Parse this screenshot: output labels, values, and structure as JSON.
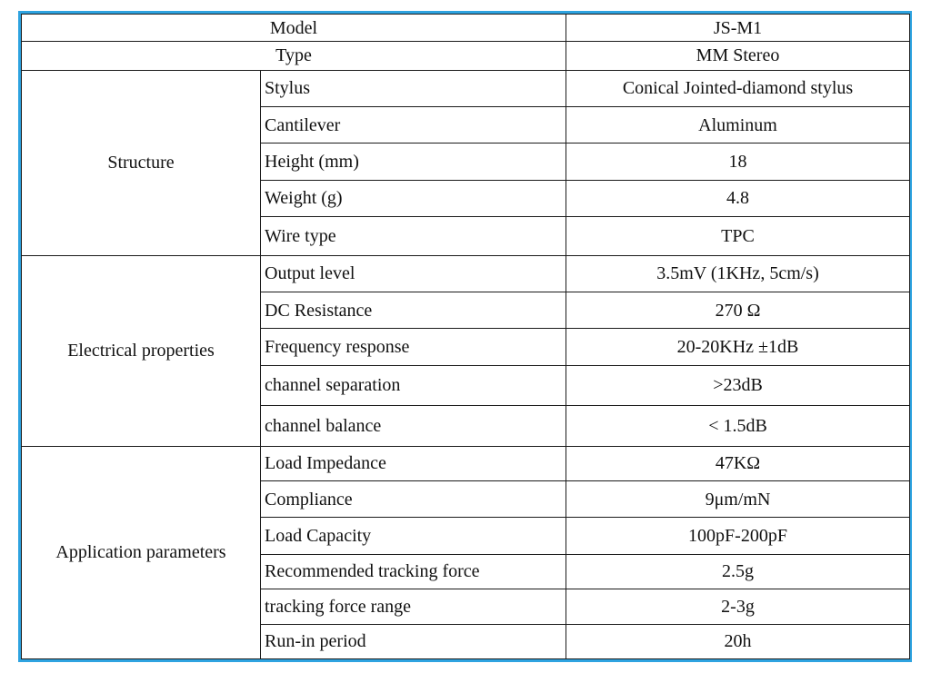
{
  "header": {
    "model_label": "Model",
    "model_value": "JS-M1",
    "type_label": "Type",
    "type_value": "MM Stereo"
  },
  "groups": {
    "structure": {
      "title": "Structure",
      "rows": [
        {
          "param": "Stylus",
          "value": "Conical Jointed-diamond stylus"
        },
        {
          "param": "Cantilever",
          "value": "Aluminum"
        },
        {
          "param": "Height (mm)",
          "value": "18"
        },
        {
          "param": "Weight (g)",
          "value": "4.8"
        },
        {
          "param": "Wire type",
          "value": "TPC"
        }
      ]
    },
    "electrical": {
      "title": "Electrical properties",
      "rows": [
        {
          "param": "Output level",
          "value": "3.5mV (1KHz, 5cm/s)"
        },
        {
          "param": "DC Resistance",
          "value": "270 Ω"
        },
        {
          "param": "Frequency response",
          "value": "20-20KHz  ±1dB"
        },
        {
          "param": "channel separation",
          "value": ">23dB"
        },
        {
          "param": "channel balance",
          "value": "< 1.5dB"
        }
      ]
    },
    "application": {
      "title": "Application parameters",
      "rows": [
        {
          "param": "Load Impedance",
          "value": "47KΩ"
        },
        {
          "param": "Compliance",
          "value": "9μm/mN"
        },
        {
          "param": "Load Capacity",
          "value": "100pF-200pF"
        },
        {
          "param": "Recommended tracking force",
          "value": "2.5g"
        },
        {
          "param": "tracking force range",
          "value": "2-3g"
        },
        {
          "param": "Run-in period",
          "value": "20h"
        }
      ]
    }
  },
  "colors": {
    "frame_border": "#2ea3e0",
    "grid_lines": "#1a1a1a"
  }
}
